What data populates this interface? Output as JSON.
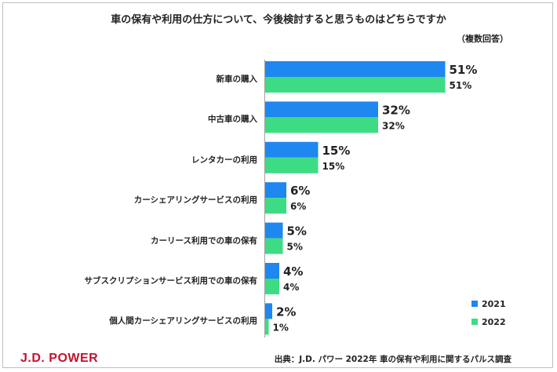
{
  "chart_data": {
    "type": "bar",
    "orientation": "horizontal",
    "title": "車の保有や利用の仕方について、今後検討すると思うものはどちらですか",
    "note": "（複数回答）",
    "categories": [
      "新車の購入",
      "中古車の購入",
      "レンタカーの利用",
      "カーシェアリングサービスの利用",
      "カーリース利用での車の保有",
      "サブスクリプションサービス利用での車の保有",
      "個人間カーシェアリングサービスの利用"
    ],
    "series": [
      {
        "name": "2021",
        "color": "#1e87f0",
        "values": [
          51,
          32,
          15,
          6,
          5,
          4,
          2
        ]
      },
      {
        "name": "2022",
        "color": "#3ddc84",
        "values": [
          51,
          32,
          15,
          6,
          5,
          4,
          1
        ]
      }
    ],
    "value_suffix": "%",
    "legend_position": "bottom-right",
    "grid": false
  },
  "footer": {
    "logo": "J.D. POWER",
    "source": "出典：J.D. パワー 2022年 車の保有や利用に関するパルス調査"
  }
}
